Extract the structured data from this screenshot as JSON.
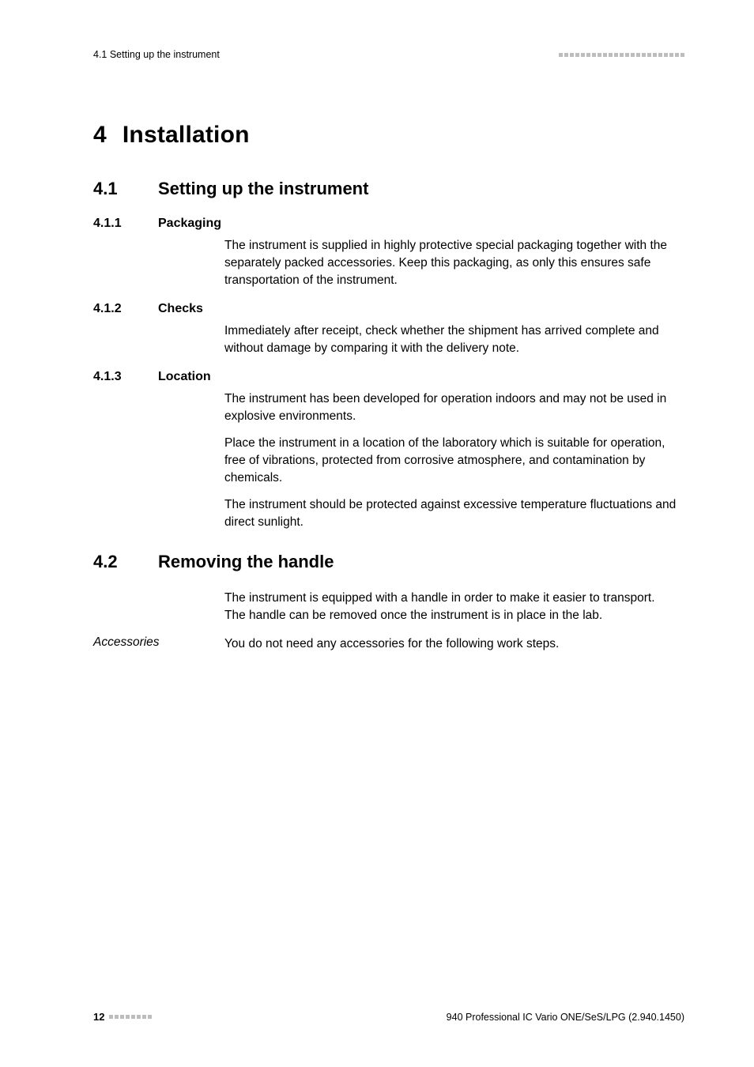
{
  "header": {
    "left": "4.1 Setting up the instrument"
  },
  "chapter": {
    "number": "4",
    "title": "Installation"
  },
  "sec41": {
    "number": "4.1",
    "title": "Setting up the instrument",
    "s411": {
      "number": "4.1.1",
      "title": "Packaging",
      "p1": "The instrument is supplied in highly protective special packaging together with the separately packed accessories. Keep this packaging, as only this ensures safe transportation of the instrument."
    },
    "s412": {
      "number": "4.1.2",
      "title": "Checks",
      "p1": "Immediately after receipt, check whether the shipment has arrived complete and without damage by comparing it with the delivery note."
    },
    "s413": {
      "number": "4.1.3",
      "title": "Location",
      "p1": "The instrument has been developed for operation indoors and may not be used in explosive environments.",
      "p2": "Place the instrument in a location of the laboratory which is suitable for operation, free of vibrations, protected from corrosive atmosphere, and contamination by chemicals.",
      "p3": "The instrument should be protected against excessive temperature fluctuations and direct sunlight."
    }
  },
  "sec42": {
    "number": "4.2",
    "title": "Removing the handle",
    "p1": "The instrument is equipped with a handle in order to make it easier to transport. The handle can be removed once the instrument is in place in the lab.",
    "accessories_label": "Accessories",
    "accessories_text": "You do not need any accessories for the following work steps."
  },
  "footer": {
    "page": "12",
    "right": "940 Professional IC Vario ONE/SeS/LPG (2.940.1450)"
  },
  "style": {
    "tick_color": "#bdbdbd",
    "header_ticks": 23,
    "footer_ticks": 8
  }
}
